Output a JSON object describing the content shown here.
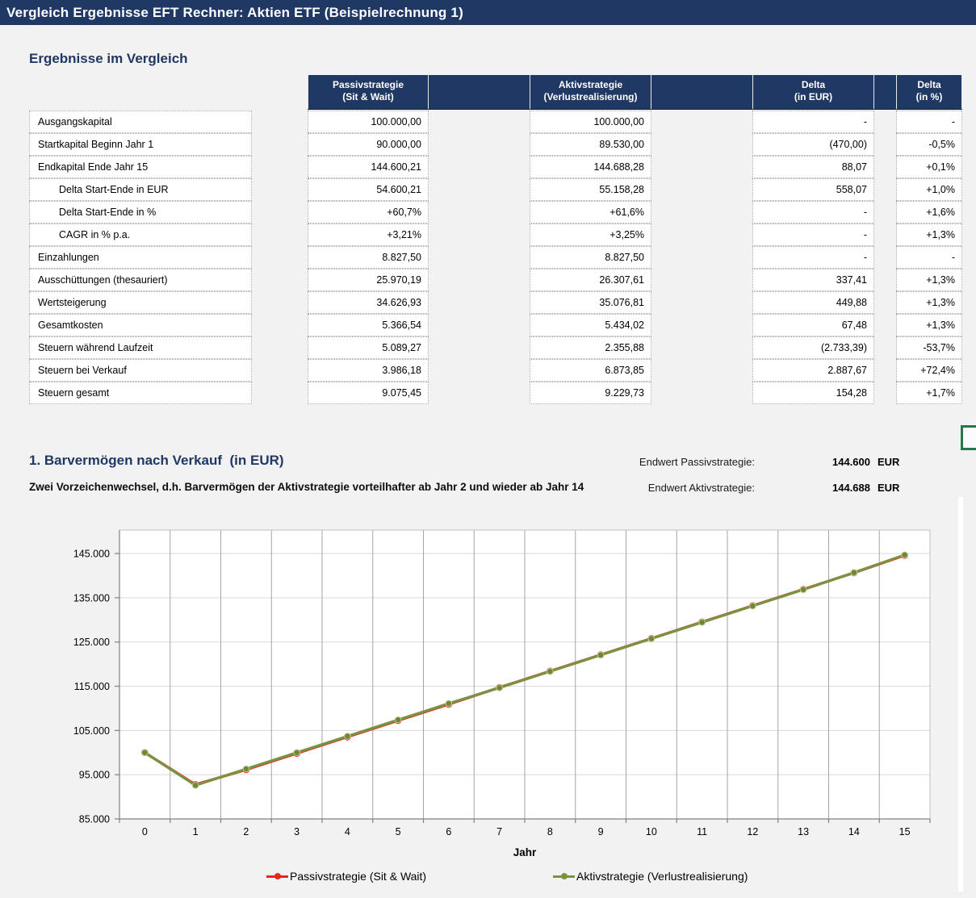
{
  "title_bar": "Vergleich Ergebnisse EFT Rechner: Aktien ETF (Beispielrechnung 1)",
  "section1": {
    "heading": "Ergebnisse im Vergleich",
    "table": {
      "col_headers": [
        {
          "line1": "Passivstrategie",
          "line2": "(Sit & Wait)"
        },
        {
          "line1": "Aktivstrategie",
          "line2": "(Verlustrealisierung)"
        },
        {
          "line1": "Delta",
          "line2": "(in EUR)"
        },
        {
          "line1": "Delta",
          "line2": "(in %)"
        }
      ],
      "rows": [
        {
          "label": "Ausgangskapital",
          "indent": false,
          "passiv": "100.000,00",
          "aktiv": "100.000,00",
          "delta_eur": "-",
          "delta_pct": "-"
        },
        {
          "label": "Startkapital Beginn Jahr 1",
          "indent": false,
          "passiv": "90.000,00",
          "aktiv": "89.530,00",
          "delta_eur": "(470,00)",
          "delta_pct": "-0,5%"
        },
        {
          "label": "Endkapital Ende Jahr 15",
          "indent": false,
          "passiv": "144.600,21",
          "aktiv": "144.688,28",
          "delta_eur": "88,07",
          "delta_pct": "+0,1%"
        },
        {
          "label": "Delta Start-Ende in EUR",
          "indent": true,
          "passiv": "54.600,21",
          "aktiv": "55.158,28",
          "delta_eur": "558,07",
          "delta_pct": "+1,0%"
        },
        {
          "label": "Delta Start-Ende in %",
          "indent": true,
          "passiv": "+60,7%",
          "aktiv": "+61,6%",
          "delta_eur": "-",
          "delta_pct": "+1,6%"
        },
        {
          "label": "CAGR in % p.a.",
          "indent": true,
          "passiv": "+3,21%",
          "aktiv": "+3,25%",
          "delta_eur": "-",
          "delta_pct": "+1,3%"
        },
        {
          "label": "Einzahlungen",
          "indent": false,
          "passiv": "8.827,50",
          "aktiv": "8.827,50",
          "delta_eur": "-",
          "delta_pct": "-"
        },
        {
          "label": "Ausschüttungen (thesauriert)",
          "indent": false,
          "passiv": "25.970,19",
          "aktiv": "26.307,61",
          "delta_eur": "337,41",
          "delta_pct": "+1,3%"
        },
        {
          "label": "Wertsteigerung",
          "indent": false,
          "passiv": "34.626,93",
          "aktiv": "35.076,81",
          "delta_eur": "449,88",
          "delta_pct": "+1,3%"
        },
        {
          "label": "Gesamtkosten",
          "indent": false,
          "passiv": "5.366,54",
          "aktiv": "5.434,02",
          "delta_eur": "67,48",
          "delta_pct": "+1,3%"
        },
        {
          "label": "Steuern während Laufzeit",
          "indent": false,
          "passiv": "5.089,27",
          "aktiv": "2.355,88",
          "delta_eur": "(2.733,39)",
          "delta_pct": "-53,7%"
        },
        {
          "label": "Steuern bei Verkauf",
          "indent": false,
          "passiv": "3.986,18",
          "aktiv": "6.873,85",
          "delta_eur": "2.887,67",
          "delta_pct": "+72,4%"
        },
        {
          "label": "Steuern gesamt",
          "indent": false,
          "passiv": "9.075,45",
          "aktiv": "9.229,73",
          "delta_eur": "154,28",
          "delta_pct": "+1,7%"
        }
      ]
    }
  },
  "section2": {
    "heading": "1. Barvermögen nach Verkauf  (in EUR)",
    "subtitle": "Zwei Vorzeichenwechsel, d.h. Barvermögen der Aktivstrategie vorteilhafter ab Jahr 2 und wieder ab Jahr 14",
    "endwert_passiv_label": "Endwert Passivstrategie:",
    "endwert_passiv_value": "144.600",
    "endwert_passiv_unit": "EUR",
    "endwert_aktiv_label": "Endwert Aktivstrategie:",
    "endwert_aktiv_value": "144.688",
    "endwert_aktiv_unit": "EUR"
  },
  "chart_data": {
    "type": "line",
    "xlabel": "Jahr",
    "x": [
      0,
      1,
      2,
      3,
      4,
      5,
      6,
      7,
      8,
      9,
      10,
      11,
      12,
      13,
      14,
      15
    ],
    "series": [
      {
        "name": "Passivstrategie (Sit & Wait)",
        "color": "#E8261F",
        "values": [
          100000,
          92750,
          96150,
          99850,
          103550,
          107250,
          110950,
          114700,
          118400,
          122100,
          125800,
          129500,
          133200,
          136900,
          140650,
          144600
        ]
      },
      {
        "name": "Aktivstrategie (Verlustrealisierung)",
        "color": "#789440",
        "values": [
          100000,
          92600,
          96300,
          100000,
          103700,
          107400,
          111100,
          114650,
          118350,
          122050,
          125750,
          129450,
          133150,
          136850,
          140700,
          144688
        ]
      }
    ],
    "ylim": [
      85000,
      150300
    ],
    "yticks": [
      85000,
      95000,
      105000,
      115000,
      125000,
      135000,
      145000
    ],
    "ytick_labels": [
      "85.000",
      "95.000",
      "105.000",
      "115.000",
      "125.000",
      "135.000",
      "145.000"
    ],
    "grid": true,
    "legend_position": "bottom"
  },
  "colors": {
    "navy": "#1F3864",
    "page_bg": "#F2F2F2",
    "cell_bg": "#FFFFFF",
    "passiv_red": "#E8261F",
    "aktiv_olive": "#789440",
    "selection_green": "#26784B"
  }
}
